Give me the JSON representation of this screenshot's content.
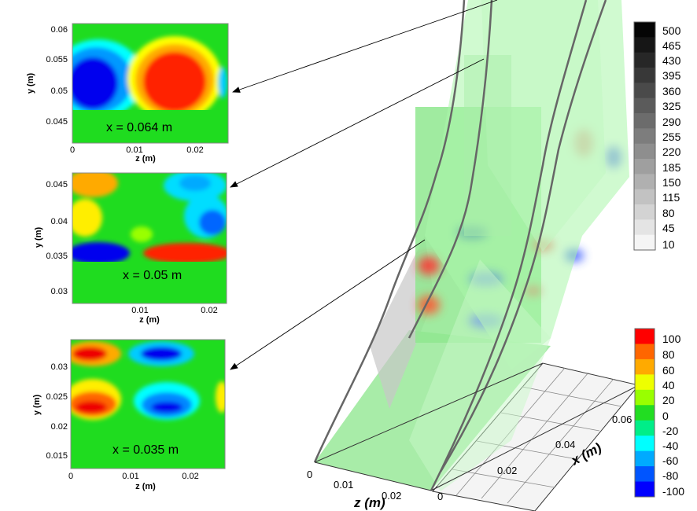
{
  "panels": [
    {
      "label": "x = 0.064 m",
      "ylabel": "y (m)",
      "xlabel": "z (m)",
      "yticks": [
        "0.06",
        "0.055",
        "0.05",
        "0.045"
      ],
      "xticks": [
        "0",
        "0.01",
        "0.02"
      ]
    },
    {
      "label": "x = 0.05 m",
      "ylabel": "y (m)",
      "xlabel": "z (m)",
      "yticks": [
        "0.045",
        "0.04",
        "0.035",
        "0.03"
      ],
      "xticks": [
        "0.01",
        "0.02"
      ]
    },
    {
      "label": "x = 0.035 m",
      "ylabel": "y (m)",
      "xlabel": "z (m)",
      "yticks": [
        "0.03",
        "0.025",
        "0.02",
        "0.015"
      ],
      "xticks": [
        "0",
        "0.01",
        "0.02"
      ]
    }
  ],
  "grayscale_legend": {
    "labels": [
      "500",
      "465",
      "430",
      "395",
      "360",
      "325",
      "290",
      "255",
      "220",
      "185",
      "150",
      "115",
      "80",
      "45",
      "10"
    ]
  },
  "color_legend": {
    "labels": [
      "100",
      "80",
      "60",
      "40",
      "20",
      "0",
      "-20",
      "-40",
      "-60",
      "-80",
      "-100"
    ],
    "colors": [
      "#ff0000",
      "#ff6600",
      "#ffaa00",
      "#eeff00",
      "#99ff00",
      "#22dd22",
      "#00ee88",
      "#00ffff",
      "#00aaff",
      "#0055ff",
      "#0000ff"
    ]
  },
  "axes3d": {
    "z_label": "z (m)",
    "x_label": "x (m)",
    "z_ticks": [
      "0",
      "0.01",
      "0.02"
    ],
    "x_ticks": [
      "0",
      "0.02",
      "0.04",
      "0.06"
    ],
    "origin_label": "0"
  }
}
